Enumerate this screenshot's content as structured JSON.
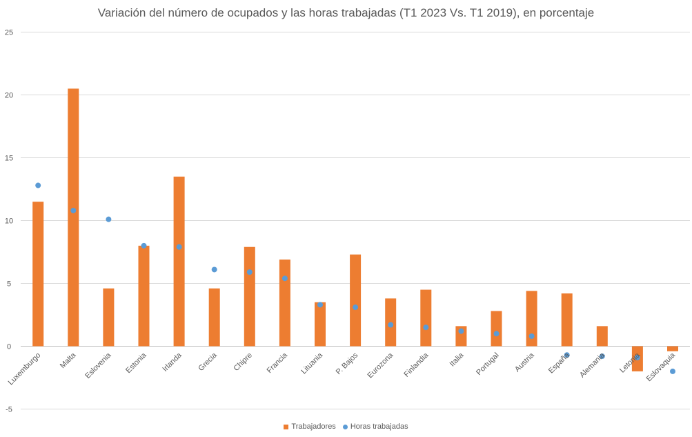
{
  "chart_data": {
    "type": "bar",
    "title": "Variación del número de ocupados y las horas trabajadas (T1 2023 Vs. T1 2019), en porcentaje",
    "xlabel": "",
    "ylabel": "",
    "ylim": [
      -5,
      25
    ],
    "yticks": [
      "25",
      "20",
      "15",
      "10",
      "5",
      "0",
      "-5"
    ],
    "ytick_values": [
      25,
      20,
      15,
      10,
      5,
      0,
      -5
    ],
    "grid": true,
    "legend_position": "bottom",
    "categories": [
      "Luxemburgo",
      "Malta",
      "Eslovenia",
      "Estonia",
      "Irlanda",
      "Grecia",
      "Chipre",
      "Francia",
      "Lituania",
      "P. Bajos",
      "Eurozona",
      "Finlandia",
      "Italia",
      "Portugal",
      "Austria",
      "España",
      "Alemania",
      "Letonia",
      "Eslovaquia"
    ],
    "series": [
      {
        "name": "Trabajadores",
        "type": "bar",
        "color": "#ED7D31",
        "values": [
          11.5,
          20.5,
          4.6,
          8.0,
          13.5,
          4.6,
          7.9,
          6.9,
          3.5,
          7.3,
          3.8,
          4.5,
          1.6,
          2.8,
          4.4,
          4.2,
          1.6,
          -2.0,
          -0.4
        ]
      },
      {
        "name": "Horas trabajadas",
        "type": "scatter",
        "color": "#5B9BD5",
        "values": [
          12.8,
          10.8,
          10.1,
          8.0,
          7.9,
          6.1,
          5.9,
          5.4,
          3.3,
          3.1,
          1.7,
          1.5,
          1.2,
          1.0,
          0.8,
          -0.7,
          -0.8,
          -0.9,
          -2.0
        ]
      }
    ]
  }
}
